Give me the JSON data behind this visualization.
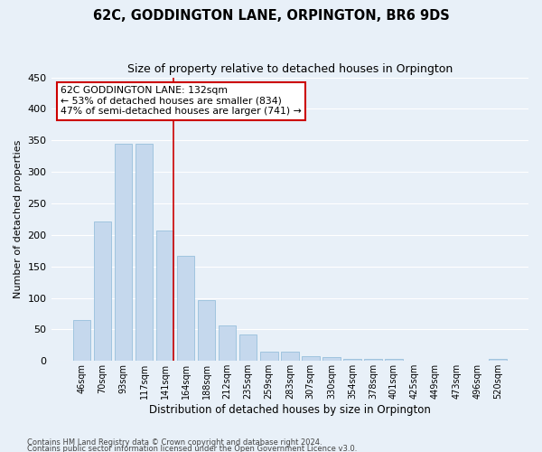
{
  "title": "62C, GODDINGTON LANE, ORPINGTON, BR6 9DS",
  "subtitle": "Size of property relative to detached houses in Orpington",
  "xlabel": "Distribution of detached houses by size in Orpington",
  "ylabel": "Number of detached properties",
  "categories": [
    "46sqm",
    "70sqm",
    "93sqm",
    "117sqm",
    "141sqm",
    "164sqm",
    "188sqm",
    "212sqm",
    "235sqm",
    "259sqm",
    "283sqm",
    "307sqm",
    "330sqm",
    "354sqm",
    "378sqm",
    "401sqm",
    "425sqm",
    "449sqm",
    "473sqm",
    "496sqm",
    "520sqm"
  ],
  "values": [
    65,
    222,
    345,
    345,
    207,
    167,
    97,
    57,
    42,
    15,
    15,
    8,
    6,
    4,
    4,
    4,
    0,
    0,
    0,
    0,
    3
  ],
  "bar_color": "#c5d8ed",
  "bar_edge_color": "#8ab8d8",
  "bg_color": "#e8f0f8",
  "grid_color": "#ffffff",
  "vline_color": "#cc0000",
  "annotation_text": "62C GODDINGTON LANE: 132sqm\n← 53% of detached houses are smaller (834)\n47% of semi-detached houses are larger (741) →",
  "annotation_box_color": "#ffffff",
  "annotation_box_edge_color": "#cc0000",
  "ylim": [
    0,
    450
  ],
  "yticks": [
    0,
    50,
    100,
    150,
    200,
    250,
    300,
    350,
    400,
    450
  ],
  "footer_line1": "Contains HM Land Registry data © Crown copyright and database right 2024.",
  "footer_line2": "Contains public sector information licensed under the Open Government Licence v3.0."
}
